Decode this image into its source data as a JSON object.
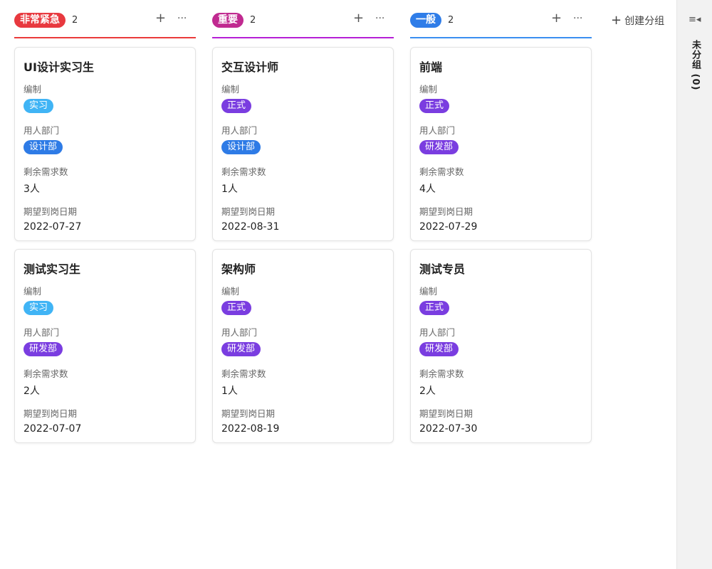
{
  "columns": [
    {
      "name": "非常紧急",
      "count": "2",
      "color": "#e8393f",
      "line": "#ea3b3b",
      "cards": [
        {
          "title": "UI设计实习生",
          "type": "实习",
          "type_color": "#40b4f5",
          "dept": "设计部",
          "dept_color": "#2e7be6",
          "remain": "3人",
          "date": "2022-07-27"
        },
        {
          "title": "测试实习生",
          "type": "实习",
          "type_color": "#40b4f5",
          "dept": "研发部",
          "dept_color": "#7a3de0",
          "remain": "2人",
          "date": "2022-07-07"
        }
      ]
    },
    {
      "name": "重要",
      "count": "2",
      "color": "#c02a90",
      "line": "#b51fd6",
      "cards": [
        {
          "title": "交互设计师",
          "type": "正式",
          "type_color": "#7a3de0",
          "dept": "设计部",
          "dept_color": "#2e7be6",
          "remain": "1人",
          "date": "2022-08-31"
        },
        {
          "title": "架构师",
          "type": "正式",
          "type_color": "#7a3de0",
          "dept": "研发部",
          "dept_color": "#7a3de0",
          "remain": "1人",
          "date": "2022-08-19"
        }
      ]
    },
    {
      "name": "一般",
      "count": "2",
      "color": "#2f7de8",
      "line": "#3a8ef0",
      "cards": [
        {
          "title": "前端",
          "type": "正式",
          "type_color": "#7a3de0",
          "dept": "研发部",
          "dept_color": "#7a3de0",
          "remain": "4人",
          "date": "2022-07-29"
        },
        {
          "title": "测试专员",
          "type": "正式",
          "type_color": "#7a3de0",
          "dept": "研发部",
          "dept_color": "#7a3de0",
          "remain": "2人",
          "date": "2022-07-30"
        }
      ]
    }
  ],
  "labels": {
    "type": "编制",
    "dept": "用人部门",
    "remain": "剩余需求数",
    "date": "期望到岗日期"
  },
  "create_group": "创建分组",
  "ungrouped": "未分组 (0)",
  "icons": {
    "add": "+",
    "more": "···",
    "collapse": "≡◂"
  }
}
